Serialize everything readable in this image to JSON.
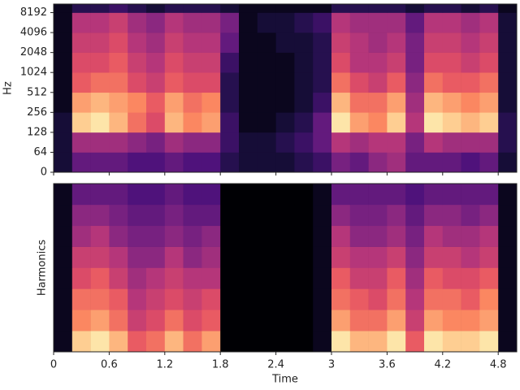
{
  "chart_data": [
    {
      "type": "heatmap",
      "colormap": "magma",
      "ylabel": "Hz",
      "yscale": "symlog",
      "linthresh": 64,
      "xlim": [
        0,
        5.0
      ],
      "ylim": [
        0,
        11025
      ],
      "xticks": [
        0,
        0.6,
        1.2,
        1.8,
        2.4,
        3,
        3.6,
        4.2,
        4.8
      ],
      "show_xticklabels": false,
      "yticks": [
        0,
        64,
        128,
        256,
        512,
        1024,
        2048,
        4096,
        8192
      ],
      "x_edges": [
        0,
        0.2,
        0.4,
        0.6,
        0.8,
        1.0,
        1.2,
        1.4,
        1.6,
        1.8,
        2.0,
        2.2,
        2.4,
        2.6,
        2.8,
        3.0,
        3.2,
        3.4,
        3.6,
        3.8,
        4.0,
        4.2,
        4.4,
        4.6,
        4.8,
        5.0
      ],
      "y_edges": [
        0,
        64,
        128,
        256,
        512,
        1024,
        2048,
        4096,
        8192,
        11025
      ],
      "z": [
        [
          0.1,
          0.3,
          0.3,
          0.3,
          0.25,
          0.25,
          0.3,
          0.25,
          0.25,
          0.15,
          0.1,
          0.1,
          0.1,
          0.15,
          0.2,
          0.35,
          0.3,
          0.4,
          0.45,
          0.3,
          0.3,
          0.3,
          0.25,
          0.3,
          0.1
        ],
        [
          0.1,
          0.45,
          0.45,
          0.45,
          0.4,
          0.35,
          0.45,
          0.4,
          0.4,
          0.2,
          0.1,
          0.1,
          0.15,
          0.2,
          0.3,
          0.5,
          0.45,
          0.5,
          0.5,
          0.35,
          0.5,
          0.45,
          0.45,
          0.45,
          0.15
        ],
        [
          0.1,
          0.9,
          0.95,
          0.85,
          0.7,
          0.6,
          0.85,
          0.75,
          0.8,
          0.2,
          0.05,
          0.05,
          0.1,
          0.15,
          0.3,
          0.95,
          0.8,
          0.75,
          0.9,
          0.5,
          0.95,
          0.9,
          0.85,
          0.9,
          0.15
        ],
        [
          0.05,
          0.8,
          0.85,
          0.8,
          0.75,
          0.65,
          0.8,
          0.7,
          0.75,
          0.15,
          0.05,
          0.05,
          0.05,
          0.1,
          0.2,
          0.85,
          0.7,
          0.7,
          0.8,
          0.45,
          0.85,
          0.8,
          0.75,
          0.8,
          0.1
        ],
        [
          0.05,
          0.65,
          0.7,
          0.7,
          0.6,
          0.55,
          0.65,
          0.6,
          0.6,
          0.15,
          0.05,
          0.05,
          0.05,
          0.1,
          0.15,
          0.7,
          0.6,
          0.55,
          0.65,
          0.4,
          0.7,
          0.65,
          0.65,
          0.7,
          0.1
        ],
        [
          0.05,
          0.6,
          0.6,
          0.65,
          0.55,
          0.5,
          0.6,
          0.55,
          0.55,
          0.2,
          0.05,
          0.05,
          0.05,
          0.1,
          0.15,
          0.6,
          0.5,
          0.5,
          0.55,
          0.35,
          0.6,
          0.6,
          0.55,
          0.6,
          0.1
        ],
        [
          0.05,
          0.55,
          0.55,
          0.6,
          0.5,
          0.45,
          0.55,
          0.5,
          0.5,
          0.3,
          0.05,
          0.05,
          0.1,
          0.1,
          0.15,
          0.55,
          0.5,
          0.45,
          0.5,
          0.35,
          0.55,
          0.55,
          0.5,
          0.55,
          0.1
        ],
        [
          0.05,
          0.5,
          0.5,
          0.55,
          0.45,
          0.4,
          0.5,
          0.45,
          0.45,
          0.35,
          0.05,
          0.1,
          0.1,
          0.15,
          0.2,
          0.5,
          0.45,
          0.45,
          0.45,
          0.3,
          0.5,
          0.5,
          0.45,
          0.5,
          0.1
        ],
        [
          0.05,
          0.15,
          0.15,
          0.2,
          0.15,
          0.1,
          0.15,
          0.15,
          0.15,
          0.1,
          0.05,
          0.05,
          0.05,
          0.05,
          0.05,
          0.15,
          0.15,
          0.15,
          0.15,
          0.1,
          0.15,
          0.15,
          0.1,
          0.15,
          0.05
        ]
      ]
    },
    {
      "type": "heatmap",
      "colormap": "magma",
      "ylabel": "Harmonics",
      "xlabel": "Time",
      "xlim": [
        0,
        5.0
      ],
      "xticks": [
        0,
        0.6,
        1.2,
        1.8,
        2.4,
        3,
        3.6,
        4.2,
        4.8
      ],
      "show_xticklabels": true,
      "x_edges": [
        0,
        0.2,
        0.4,
        0.6,
        0.8,
        1.0,
        1.2,
        1.4,
        1.6,
        1.8,
        2.0,
        2.2,
        2.4,
        2.6,
        2.8,
        3.0,
        3.2,
        3.4,
        3.6,
        3.8,
        4.0,
        4.2,
        4.4,
        4.6,
        4.8,
        5.0
      ],
      "z": [
        [
          0.05,
          0.9,
          0.95,
          0.85,
          0.65,
          0.7,
          0.85,
          0.7,
          0.8,
          0,
          0,
          0,
          0,
          0,
          0.05,
          0.95,
          0.85,
          0.85,
          0.95,
          0.65,
          0.95,
          0.9,
          0.9,
          0.95,
          0.05
        ],
        [
          0.05,
          0.75,
          0.8,
          0.7,
          0.55,
          0.6,
          0.7,
          0.6,
          0.65,
          0,
          0,
          0,
          0,
          0,
          0.05,
          0.8,
          0.7,
          0.7,
          0.8,
          0.55,
          0.8,
          0.75,
          0.75,
          0.8,
          0.05
        ],
        [
          0.05,
          0.7,
          0.7,
          0.65,
          0.5,
          0.55,
          0.6,
          0.55,
          0.6,
          0,
          0,
          0,
          0,
          0,
          0.05,
          0.7,
          0.65,
          0.6,
          0.7,
          0.5,
          0.7,
          0.7,
          0.65,
          0.75,
          0.05
        ],
        [
          0.05,
          0.6,
          0.65,
          0.55,
          0.45,
          0.5,
          0.55,
          0.5,
          0.5,
          0,
          0,
          0,
          0,
          0,
          0.05,
          0.65,
          0.55,
          0.55,
          0.65,
          0.45,
          0.65,
          0.6,
          0.6,
          0.65,
          0.05
        ],
        [
          0.05,
          0.55,
          0.55,
          0.5,
          0.4,
          0.4,
          0.5,
          0.4,
          0.45,
          0,
          0,
          0,
          0,
          0,
          0.05,
          0.55,
          0.5,
          0.5,
          0.55,
          0.4,
          0.55,
          0.55,
          0.5,
          0.55,
          0.05
        ],
        [
          0.05,
          0.45,
          0.5,
          0.4,
          0.35,
          0.35,
          0.4,
          0.35,
          0.4,
          0,
          0,
          0,
          0,
          0,
          0.05,
          0.5,
          0.4,
          0.4,
          0.45,
          0.35,
          0.5,
          0.45,
          0.45,
          0.5,
          0.05
        ],
        [
          0.05,
          0.4,
          0.4,
          0.35,
          0.3,
          0.3,
          0.35,
          0.3,
          0.3,
          0,
          0,
          0,
          0,
          0,
          0.05,
          0.4,
          0.35,
          0.35,
          0.4,
          0.3,
          0.4,
          0.4,
          0.35,
          0.4,
          0.05
        ],
        [
          0.05,
          0.3,
          0.3,
          0.3,
          0.25,
          0.25,
          0.3,
          0.25,
          0.25,
          0,
          0,
          0,
          0,
          0,
          0.05,
          0.3,
          0.3,
          0.3,
          0.3,
          0.25,
          0.3,
          0.3,
          0.3,
          0.3,
          0.05
        ]
      ]
    }
  ]
}
